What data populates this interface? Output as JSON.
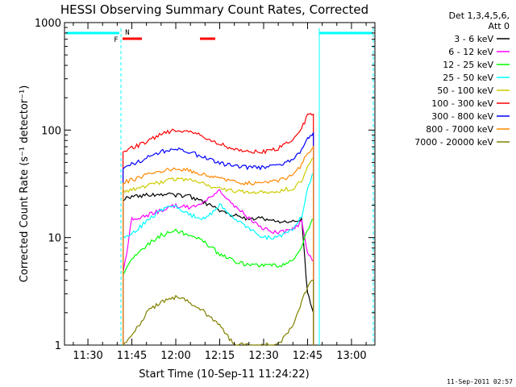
{
  "chart_data": {
    "type": "line",
    "title": "HESSI Observing Summary Count Rates, Corrected",
    "xlabel": "Start Time (10-Sep-11 11:24:22)",
    "ylabel": "Corrected Count Rate (s⁻¹ detector⁻¹)",
    "y_scale": "log",
    "ylim": [
      1,
      1000
    ],
    "xlim_minutes": [
      11.37,
      13.13
    ],
    "x_ticks": [
      "11:30",
      "11:45",
      "12:00",
      "12:15",
      "12:30",
      "12:45",
      "13:00"
    ],
    "y_ticks": [
      "1",
      "10",
      "100",
      "1000"
    ],
    "legend_header": [
      "Det 1,3,4,5,6,",
      "Att 0"
    ],
    "legend_placement": "right",
    "footer_timestamp": "11-Sep-2011 02:57",
    "flags": {
      "F": "F",
      "N": "N"
    },
    "series": [
      {
        "name": "3 - 6 keV",
        "color": "#000000",
        "x": [
          "11:42",
          "11:45",
          "11:50",
          "11:55",
          "12:00",
          "12:05",
          "12:10",
          "12:15",
          "12:20",
          "12:25",
          "12:30",
          "12:35",
          "12:40",
          "12:43",
          "12:45",
          "12:47"
        ],
        "values": [
          23,
          24,
          25,
          25,
          25,
          24,
          21,
          18,
          16,
          15,
          15,
          14,
          14,
          15,
          3,
          2
        ]
      },
      {
        "name": "6 - 12 keV",
        "color": "#ff00ff",
        "x": [
          "11:42",
          "11:45",
          "11:50",
          "11:55",
          "12:00",
          "12:05",
          "12:10",
          "12:15",
          "12:20",
          "12:25",
          "12:30",
          "12:35",
          "12:40",
          "12:43",
          "12:45",
          "12:47"
        ],
        "values": [
          4.5,
          15,
          16,
          18,
          20,
          19,
          22,
          27,
          20,
          15,
          12,
          11,
          12,
          14,
          7,
          6
        ]
      },
      {
        "name": "12 - 25 keV",
        "color": "#00ff00",
        "x": [
          "11:42",
          "11:45",
          "11:50",
          "11:55",
          "12:00",
          "12:05",
          "12:10",
          "12:15",
          "12:20",
          "12:25",
          "12:30",
          "12:35",
          "12:40",
          "12:43",
          "12:45",
          "12:47"
        ],
        "values": [
          4.5,
          6.5,
          8.5,
          10.5,
          11.5,
          10.5,
          9,
          7,
          6,
          5.5,
          5.5,
          5.5,
          6,
          8,
          12,
          15
        ]
      },
      {
        "name": "25 - 50 keV",
        "color": "#00ffff",
        "x": [
          "11:42",
          "11:45",
          "11:50",
          "11:55",
          "12:00",
          "12:05",
          "12:10",
          "12:15",
          "12:20",
          "12:25",
          "12:30",
          "12:35",
          "12:40",
          "12:43",
          "12:45",
          "12:47"
        ],
        "values": [
          10,
          11,
          14,
          18,
          20,
          16,
          15,
          20,
          15,
          12,
          10,
          10,
          12,
          16,
          28,
          40
        ]
      },
      {
        "name": "50 - 100 keV",
        "color": "#cccc00",
        "x": [
          "11:42",
          "11:45",
          "11:50",
          "11:55",
          "12:00",
          "12:05",
          "12:10",
          "12:15",
          "12:20",
          "12:25",
          "12:30",
          "12:35",
          "12:40",
          "12:43",
          "12:45",
          "12:47"
        ],
        "values": [
          27,
          28,
          30,
          33,
          35,
          34,
          31,
          29,
          27,
          26,
          26,
          27,
          29,
          33,
          45,
          55
        ]
      },
      {
        "name": "100 - 300 keV",
        "color": "#ff0000",
        "x": [
          "11:42",
          "11:45",
          "11:50",
          "11:55",
          "12:00",
          "12:05",
          "12:10",
          "12:15",
          "12:20",
          "12:25",
          "12:30",
          "12:35",
          "12:40",
          "12:43",
          "12:45",
          "12:47"
        ],
        "values": [
          65,
          68,
          78,
          92,
          100,
          97,
          85,
          74,
          66,
          63,
          63,
          68,
          80,
          105,
          135,
          140
        ]
      },
      {
        "name": "300 - 800 keV",
        "color": "#0000ff",
        "x": [
          "11:42",
          "11:45",
          "11:50",
          "11:55",
          "12:00",
          "12:05",
          "12:10",
          "12:15",
          "12:20",
          "12:25",
          "12:30",
          "12:35",
          "12:40",
          "12:43",
          "12:45",
          "12:47"
        ],
        "values": [
          45,
          48,
          55,
          63,
          66,
          62,
          55,
          49,
          46,
          45,
          45,
          47,
          52,
          65,
          85,
          95
        ]
      },
      {
        "name": "800 - 7000 keV",
        "color": "#ff8800",
        "x": [
          "11:42",
          "11:45",
          "11:50",
          "11:55",
          "12:00",
          "12:05",
          "12:10",
          "12:15",
          "12:20",
          "12:25",
          "12:30",
          "12:35",
          "12:40",
          "12:43",
          "12:45",
          "12:47"
        ],
        "values": [
          33,
          34,
          38,
          42,
          44,
          42,
          38,
          35,
          33,
          32,
          32,
          34,
          38,
          47,
          62,
          70
        ]
      },
      {
        "name": "7000 - 20000 keV",
        "color": "#808000",
        "x": [
          "11:42",
          "11:45",
          "11:50",
          "11:55",
          "12:00",
          "12:05",
          "12:10",
          "12:15",
          "12:20",
          "12:25",
          "12:30",
          "12:35",
          "12:40",
          "12:43",
          "12:45",
          "12:47"
        ],
        "values": [
          1,
          1.2,
          2,
          2.5,
          2.8,
          2.5,
          2,
          1.5,
          1,
          1,
          1,
          1,
          1.5,
          2.5,
          3.5,
          4
        ]
      }
    ]
  }
}
